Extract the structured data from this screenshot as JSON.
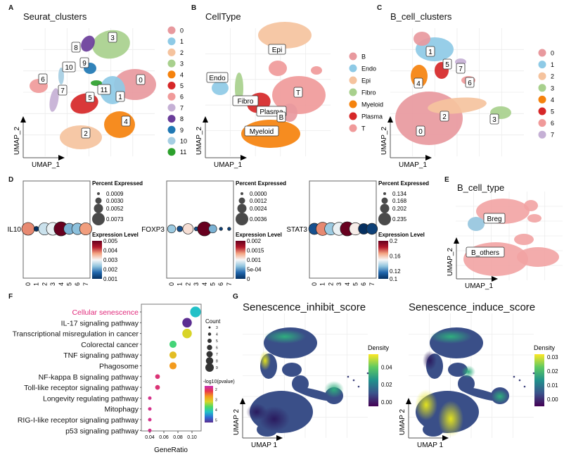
{
  "panels": {
    "A": {
      "letter": "A",
      "title": "Seurat_clusters"
    },
    "B": {
      "letter": "B",
      "title": "CellType"
    },
    "C": {
      "letter": "C",
      "title": "B_cell_clusters"
    },
    "D": {
      "letter": "D"
    },
    "E": {
      "letter": "E",
      "title": "B_cell_type"
    },
    "F": {
      "letter": "F"
    },
    "G": {
      "letter": "G",
      "title_left": "Senescence_inhibit_score",
      "title_right": "Senescence_induce_score"
    }
  },
  "umap_axes": {
    "x": "UMAP_1",
    "y": "UMAP_2",
    "x_g": "UMAP 1",
    "y_g": "UMAP 2"
  },
  "chart_data": [
    {
      "type": "scatter",
      "panel": "A",
      "title": "Seurat_clusters",
      "legend_position": "right",
      "grid": true,
      "categories": [
        "0",
        "1",
        "2",
        "3",
        "4",
        "5",
        "6",
        "7",
        "8",
        "9",
        "10",
        "11"
      ],
      "colors": [
        "#e8999e",
        "#8ecae6",
        "#f5c39e",
        "#a8d08d",
        "#f5820d",
        "#d62728",
        "#f09a9a",
        "#c5b0d5",
        "#6a3d9a",
        "#1f78b4",
        "#a6cee3",
        "#2ca02c"
      ]
    },
    {
      "type": "scatter",
      "panel": "B",
      "title": "CellType",
      "legend_position": "right",
      "grid": true,
      "categories": [
        "B",
        "Endo",
        "Epi",
        "Fibro",
        "Myeloid",
        "Plasma",
        "T"
      ],
      "colors": [
        "#e8999e",
        "#8ecae6",
        "#f5c39e",
        "#a8d08d",
        "#f5820d",
        "#d62728",
        "#f09a9a"
      ]
    },
    {
      "type": "scatter",
      "panel": "C",
      "title": "B_cell_clusters",
      "legend_position": "right",
      "grid": true,
      "categories": [
        "0",
        "1",
        "2",
        "3",
        "4",
        "5",
        "6",
        "7"
      ],
      "colors": [
        "#e8999e",
        "#8ecae6",
        "#f5c39e",
        "#a8d08d",
        "#f5820d",
        "#d62728",
        "#f09a9a",
        "#c5b0d5"
      ]
    },
    {
      "type": "scatter",
      "panel": "D",
      "subtype": "dotplot",
      "x": [
        "0",
        "1",
        "2",
        "3",
        "4",
        "5",
        "6",
        "7"
      ],
      "size_legend_title": "Percent Expressed",
      "color_legend_title": "Expression Level",
      "genes": [
        {
          "gene": "IL10",
          "percent": [
            0.006,
            0.0009,
            0.0055,
            0.006,
            0.0073,
            0.0045,
            0.0048,
            0.0055
          ],
          "expression": [
            0.0038,
            0.001,
            0.0027,
            0.0029,
            0.005,
            0.0022,
            0.0023,
            0.0037
          ],
          "size_breaks": [
            "0.0009",
            "0.0030",
            "0.0052",
            "0.0073"
          ],
          "color_breaks": [
            "0.005",
            "0.004",
            "0.003",
            "0.002",
            "0.001"
          ],
          "color_range": [
            0.001,
            0.005
          ]
        },
        {
          "gene": "FOXP3",
          "percent": [
            0.0012,
            0.0006,
            0.002,
            0.0003,
            0.0036,
            0.0012,
            0.0002,
            0.0002
          ],
          "expression": [
            0.0007,
            0.0002,
            0.0011,
            0.0002,
            0.002,
            0.0006,
            0.0001,
            0.0001
          ],
          "size_breaks": [
            "0.0000",
            "0.0012",
            "0.0024",
            "0.0036"
          ],
          "color_breaks": [
            "0.002",
            "0.0015",
            "0.001",
            "5e-04",
            "0"
          ],
          "color_range": [
            0,
            0.002
          ]
        },
        {
          "gene": "STAT3",
          "percent": [
            0.15,
            0.205,
            0.18,
            0.2,
            0.235,
            0.18,
            0.134,
            0.145
          ],
          "expression": [
            0.11,
            0.17,
            0.135,
            0.148,
            0.2,
            0.152,
            0.1,
            0.105
          ],
          "size_breaks": [
            "0.134",
            "0.168",
            "0.202",
            "0.235"
          ],
          "color_breaks": [
            "0.2",
            "0.16",
            "0.12",
            "0.1"
          ],
          "color_range": [
            0.1,
            0.2
          ]
        }
      ]
    },
    {
      "type": "scatter",
      "panel": "E",
      "title": "B_cell_type",
      "grid": true,
      "categories": [
        "Breg",
        "B_others"
      ],
      "colors": [
        "#9ecae1",
        "#f2a3a3"
      ]
    },
    {
      "type": "scatter",
      "panel": "F",
      "subtype": "enrichment-dotplot",
      "xlabel": "GeneRatio",
      "xlim": [
        0.03,
        0.11
      ],
      "x_ticks": [
        "0.04",
        "0.06",
        "0.08",
        "0.10"
      ],
      "highlight_color": "#e0297a",
      "terms": [
        "Cellular senescence",
        "IL-17 signaling pathway",
        "Transcriptional misregulation in cancer",
        "Colorectal cancer",
        "TNF signaling pathway",
        "Phagosome",
        "NF-kappa B signaling pathway",
        "Toll-like receptor signaling pathway",
        "Longevity regulating pathway",
        "Mitophagy",
        "RIG-I-like receptor signaling pathway",
        "p53 signaling pathway"
      ],
      "gene_ratio": [
        0.105,
        0.093,
        0.093,
        0.073,
        0.073,
        0.073,
        0.051,
        0.051,
        0.04,
        0.04,
        0.04,
        0.04
      ],
      "count": [
        9,
        8,
        8,
        6,
        6,
        6,
        4,
        4,
        3,
        3,
        3,
        3
      ],
      "neg_log10_pvalue": [
        4.0,
        5.0,
        3.0,
        3.6,
        2.8,
        2.5,
        1.8,
        1.8,
        1.7,
        1.7,
        1.7,
        1.7
      ],
      "size_legend_title": "Count",
      "size_breaks": [
        "3",
        "4",
        "5",
        "6",
        "7",
        "8",
        "9"
      ],
      "color_legend_title": "-log10(pvalue)",
      "color_breaks": [
        "2",
        "3",
        "4",
        "5"
      ]
    },
    {
      "type": "heatmap",
      "panel": "G",
      "subtype": "density-umap",
      "title": "Senescence_inhibit_score",
      "legend_title": "Density",
      "color_breaks": [
        "0.04",
        "0.02",
        "0.00"
      ],
      "color_range": [
        -0.005,
        0.055
      ]
    },
    {
      "type": "heatmap",
      "panel": "G",
      "subtype": "density-umap",
      "title": "Senescence_induce_score",
      "legend_title": "Density",
      "color_breaks": [
        "0.03",
        "0.02",
        "0.01",
        "0.00"
      ],
      "color_range": [
        -0.005,
        0.032
      ]
    }
  ]
}
